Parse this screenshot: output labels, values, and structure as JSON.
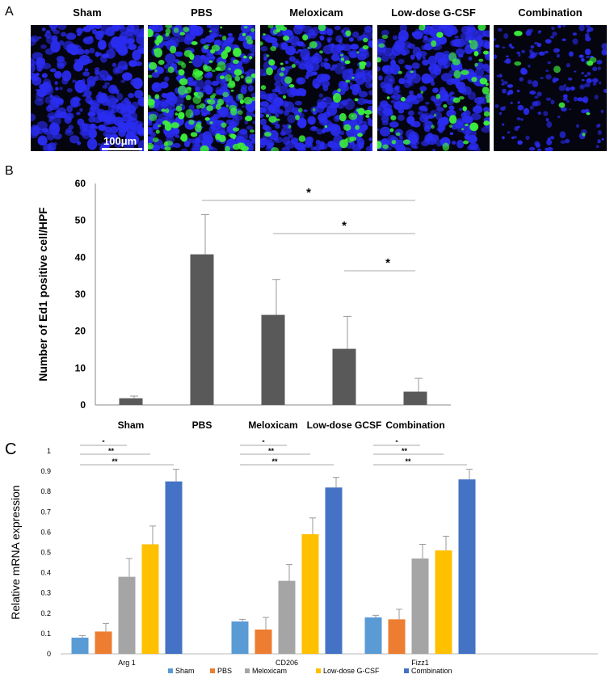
{
  "panel_letters": {
    "a": "A",
    "b": "B",
    "c": "C"
  },
  "panel_a": {
    "images": [
      {
        "title": "Sham",
        "green_density": 0.0
      },
      {
        "title": "PBS",
        "green_density": 0.55
      },
      {
        "title": "Meloxicam",
        "green_density": 0.25
      },
      {
        "title": "Low-dose G-CSF",
        "green_density": 0.2
      },
      {
        "title": "Combination",
        "green_density": 0.03
      }
    ],
    "scale_bar_label": "100μm",
    "colors": {
      "nuclei": "#2a2cf0",
      "ed1": "#3cf03c",
      "background": "#050510"
    }
  },
  "chart_data": [
    {
      "type": "bar",
      "title": "",
      "ylabel": "Number of Ed1 positive cell/HPF",
      "xlabel": "",
      "categories": [
        "Sham",
        "PBS",
        "Meloxicam",
        "Low-dose GCSF",
        "Combination"
      ],
      "values": [
        1.8,
        40.8,
        24.4,
        15.2,
        3.6
      ],
      "errors": [
        0.6,
        10.8,
        9.6,
        8.8,
        3.6
      ],
      "ylim": [
        0,
        60
      ],
      "yticks": [
        0,
        10,
        20,
        30,
        40,
        50,
        60
      ],
      "grid": false,
      "bar_color": "#595959",
      "significance": [
        {
          "from": "PBS",
          "to": "Combination",
          "label": "*"
        },
        {
          "from": "Meloxicam",
          "to": "Combination",
          "label": "*"
        },
        {
          "from": "Low-dose GCSF",
          "to": "Combination",
          "label": "*"
        }
      ]
    },
    {
      "type": "bar",
      "title": "",
      "ylabel": "Relative mRNA expression",
      "xlabel": "",
      "categories": [
        "Arg 1",
        "CD206",
        "Fizz1"
      ],
      "series": [
        {
          "name": "Sham",
          "color": "#5b9bd5",
          "values": [
            0.08,
            0.16,
            0.18
          ],
          "errors": [
            0.01,
            0.01,
            0.01
          ]
        },
        {
          "name": "PBS",
          "color": "#ed7d31",
          "values": [
            0.11,
            0.12,
            0.17
          ],
          "errors": [
            0.04,
            0.06,
            0.05
          ]
        },
        {
          "name": "Meloxicam",
          "color": "#a5a5a5",
          "values": [
            0.38,
            0.36,
            0.47
          ],
          "errors": [
            0.09,
            0.08,
            0.07
          ]
        },
        {
          "name": "Low-dose G-CSF",
          "color": "#ffc000",
          "values": [
            0.54,
            0.59,
            0.51
          ],
          "errors": [
            0.09,
            0.08,
            0.07
          ]
        },
        {
          "name": "Combination",
          "color": "#4472c4",
          "values": [
            0.85,
            0.82,
            0.86
          ],
          "errors": [
            0.06,
            0.05,
            0.05
          ]
        }
      ],
      "ylim": [
        0,
        1
      ],
      "yticks": [
        "0",
        "0.1",
        "0.2",
        "0.3",
        "0.4",
        "0.5",
        "0.6",
        "0.7",
        "0.8",
        "0.9",
        "1"
      ],
      "grid": false,
      "legend": "bottom",
      "significance": [
        {
          "from": "Sham",
          "to": "Meloxicam",
          "label": "*"
        },
        {
          "from": "Sham",
          "to": "Low-dose G-CSF",
          "label": "**"
        },
        {
          "from": "Sham",
          "to": "Combination",
          "label": "**"
        }
      ]
    }
  ]
}
